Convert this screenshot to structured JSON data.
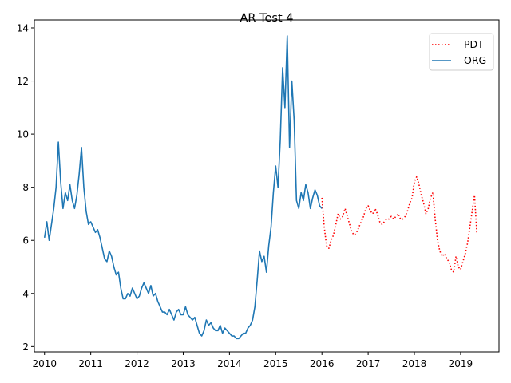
{
  "chart_data": {
    "type": "line",
    "title": "AR Test 4",
    "xlabel": "",
    "ylabel": "",
    "xlim": [
      2009.78,
      2019.83
    ],
    "ylim": [
      1.8,
      14.3
    ],
    "xticks": [
      2010,
      2011,
      2012,
      2013,
      2014,
      2015,
      2016,
      2017,
      2018,
      2019
    ],
    "xtick_labels": [
      "2010",
      "2011",
      "2012",
      "2013",
      "2014",
      "2015",
      "2016",
      "2017",
      "2018",
      "2019"
    ],
    "yticks": [
      2,
      4,
      6,
      8,
      10,
      12,
      14
    ],
    "ytick_labels": [
      "2",
      "4",
      "6",
      "8",
      "10",
      "12",
      "14"
    ],
    "grid": false,
    "legend": {
      "position": "top-right",
      "entries": [
        "PDT",
        "ORG"
      ]
    },
    "series": [
      {
        "name": "PDT",
        "color": "#ff0000",
        "style": "dotted",
        "x": [
          2016.0,
          2016.05,
          2016.1,
          2016.15,
          2016.2,
          2016.25,
          2016.3,
          2016.35,
          2016.4,
          2016.45,
          2016.5,
          2016.55,
          2016.6,
          2016.65,
          2016.7,
          2016.75,
          2016.8,
          2016.85,
          2016.9,
          2016.95,
          2017.0,
          2017.05,
          2017.1,
          2017.15,
          2017.2,
          2017.25,
          2017.3,
          2017.35,
          2017.4,
          2017.45,
          2017.5,
          2017.55,
          2017.6,
          2017.65,
          2017.7,
          2017.75,
          2017.8,
          2017.85,
          2017.9,
          2017.95,
          2018.0,
          2018.05,
          2018.1,
          2018.15,
          2018.2,
          2018.25,
          2018.3,
          2018.35,
          2018.4,
          2018.45,
          2018.5,
          2018.55,
          2018.6,
          2018.65,
          2018.7,
          2018.75,
          2018.8,
          2018.85,
          2018.9,
          2018.95,
          2019.0,
          2019.05,
          2019.1,
          2019.15,
          2019.2,
          2019.25,
          2019.3,
          2019.35
        ],
        "y": [
          7.6,
          6.5,
          5.8,
          5.7,
          6.0,
          6.2,
          6.6,
          7.0,
          6.8,
          6.9,
          7.2,
          6.9,
          6.6,
          6.3,
          6.2,
          6.3,
          6.5,
          6.7,
          6.9,
          7.2,
          7.3,
          7.1,
          7.0,
          7.2,
          7.0,
          6.7,
          6.6,
          6.7,
          6.8,
          6.8,
          6.9,
          6.8,
          6.9,
          7.0,
          6.8,
          6.8,
          6.9,
          7.1,
          7.4,
          7.6,
          8.2,
          8.4,
          8.1,
          7.7,
          7.4,
          7.0,
          7.2,
          7.6,
          7.8,
          6.8,
          6.0,
          5.6,
          5.4,
          5.5,
          5.3,
          5.2,
          4.9,
          4.8,
          5.4,
          5.0,
          4.9,
          5.2,
          5.5,
          5.9,
          6.5,
          7.1,
          7.7,
          6.3
        ]
      },
      {
        "name": "ORG",
        "color": "#1f77b4",
        "style": "solid",
        "x": [
          2010.0,
          2010.05,
          2010.1,
          2010.15,
          2010.2,
          2010.25,
          2010.3,
          2010.35,
          2010.4,
          2010.45,
          2010.5,
          2010.55,
          2010.6,
          2010.65,
          2010.7,
          2010.75,
          2010.8,
          2010.85,
          2010.9,
          2010.95,
          2011.0,
          2011.05,
          2011.1,
          2011.15,
          2011.2,
          2011.25,
          2011.3,
          2011.35,
          2011.4,
          2011.45,
          2011.5,
          2011.55,
          2011.6,
          2011.65,
          2011.7,
          2011.75,
          2011.8,
          2011.85,
          2011.9,
          2011.95,
          2012.0,
          2012.05,
          2012.1,
          2012.15,
          2012.2,
          2012.25,
          2012.3,
          2012.35,
          2012.4,
          2012.45,
          2012.5,
          2012.55,
          2012.6,
          2012.65,
          2012.7,
          2012.75,
          2012.8,
          2012.85,
          2012.9,
          2012.95,
          2013.0,
          2013.05,
          2013.1,
          2013.15,
          2013.2,
          2013.25,
          2013.3,
          2013.35,
          2013.4,
          2013.45,
          2013.5,
          2013.55,
          2013.6,
          2013.65,
          2013.7,
          2013.75,
          2013.8,
          2013.85,
          2013.9,
          2013.95,
          2014.0,
          2014.05,
          2014.1,
          2014.15,
          2014.2,
          2014.25,
          2014.3,
          2014.35,
          2014.4,
          2014.45,
          2014.5,
          2014.55,
          2014.6,
          2014.65,
          2014.7,
          2014.75,
          2014.8,
          2014.85,
          2014.9,
          2014.95,
          2015.0,
          2015.05,
          2015.1,
          2015.15,
          2015.2,
          2015.25,
          2015.3,
          2015.35,
          2015.4,
          2015.45,
          2015.5,
          2015.55,
          2015.6,
          2015.65,
          2015.7,
          2015.75,
          2015.8,
          2015.85,
          2015.9,
          2015.95,
          2016.0
        ],
        "y": [
          6.1,
          6.7,
          6.0,
          6.6,
          7.2,
          8.0,
          9.7,
          8.2,
          7.2,
          7.8,
          7.5,
          8.1,
          7.5,
          7.2,
          7.7,
          8.5,
          9.5,
          8.0,
          7.1,
          6.6,
          6.7,
          6.5,
          6.3,
          6.4,
          6.1,
          5.7,
          5.3,
          5.2,
          5.6,
          5.4,
          5.0,
          4.7,
          4.8,
          4.2,
          3.8,
          3.8,
          4.0,
          3.9,
          4.2,
          4.0,
          3.8,
          3.9,
          4.2,
          4.4,
          4.2,
          4.0,
          4.3,
          3.9,
          4.0,
          3.7,
          3.5,
          3.3,
          3.3,
          3.2,
          3.4,
          3.2,
          3.0,
          3.3,
          3.4,
          3.2,
          3.2,
          3.5,
          3.2,
          3.1,
          3.0,
          3.1,
          2.8,
          2.5,
          2.4,
          2.6,
          3.0,
          2.8,
          2.9,
          2.7,
          2.6,
          2.6,
          2.8,
          2.5,
          2.7,
          2.6,
          2.5,
          2.4,
          2.4,
          2.3,
          2.3,
          2.4,
          2.5,
          2.5,
          2.7,
          2.8,
          3.0,
          3.5,
          4.5,
          5.6,
          5.2,
          5.4,
          4.8,
          5.8,
          6.5,
          7.8,
          8.8,
          8.0,
          9.8,
          12.5,
          11.0,
          13.7,
          9.5,
          12.0,
          10.5,
          7.5,
          7.2,
          7.8,
          7.5,
          8.1,
          7.8,
          7.2,
          7.6,
          7.9,
          7.7,
          7.3,
          7.2
        ]
      }
    ]
  }
}
